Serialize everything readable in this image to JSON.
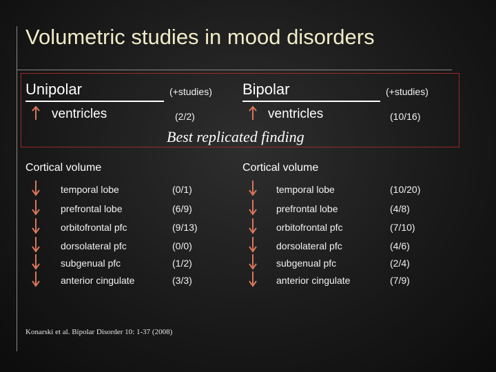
{
  "title": "Volumetric studies in mood disorders",
  "unipolar": {
    "header": "Unipolar",
    "studies_header": "(+studies)",
    "ventricles": "ventricles",
    "ventricles_count": "(2/2)"
  },
  "bipolar": {
    "header": "Bipolar",
    "studies_header": "(+studies)",
    "ventricles": "ventricles",
    "ventricles_count": "(10/16)"
  },
  "best_finding": "Best replicated finding",
  "cortical": {
    "unipolar_label": "Cortical volume",
    "bipolar_label": "Cortical volume",
    "rows": [
      {
        "region": "temporal lobe",
        "uni": "(0/1)",
        "bi": "(10/20)"
      },
      {
        "region": "prefrontal lobe",
        "uni": "(6/9)",
        "bi": "(4/8)"
      },
      {
        "region": "orbitofrontal pfc",
        "uni": "(9/13)",
        "bi": "(7/10)"
      },
      {
        "region": "dorsolateral pfc",
        "uni": "(0/0)",
        "bi": "(4/6)"
      },
      {
        "region": "subgenual pfc",
        "uni": "(1/2)",
        "bi": "(2/4)"
      },
      {
        "region": "anterior cingulate",
        "uni": "(3/3)",
        "bi": "(7/9)"
      }
    ]
  },
  "citation": "Konarski et al. Bipolar Disorder 10: 1-37 (2008)",
  "colors": {
    "arrow": "#d9775a",
    "box_border": "#9a2a2a",
    "title": "#f0ecc8"
  },
  "icons": {
    "up": "arrow-up-icon",
    "down": "arrow-down-icon"
  }
}
